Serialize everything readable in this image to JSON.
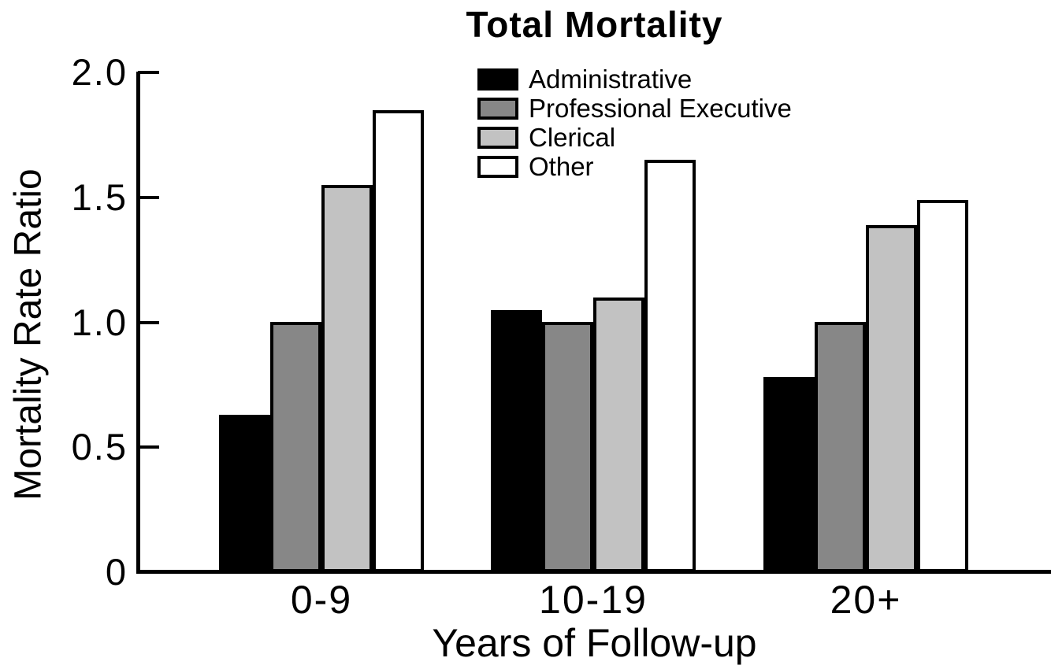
{
  "title": "Total Mortality",
  "chart_data": {
    "type": "bar",
    "title": "Total Mortality",
    "xlabel": "Years of Follow-up",
    "ylabel": "Mortality Rate Ratio",
    "categories": [
      "0-9",
      "10-19",
      "20+"
    ],
    "series": [
      {
        "name": "Administrative",
        "color": "#000000",
        "values": [
          0.63,
          1.05,
          0.78
        ]
      },
      {
        "name": "Professional Executive",
        "color": "#878787",
        "values": [
          1.0,
          1.0,
          1.0
        ]
      },
      {
        "name": "Clerical",
        "color": "#c2c2c2",
        "values": [
          1.55,
          1.1,
          1.39
        ]
      },
      {
        "name": "Other",
        "color": "#ffffff",
        "values": [
          1.85,
          1.65,
          1.49
        ]
      }
    ],
    "ylim": [
      0,
      2.0
    ],
    "yticks": [
      {
        "label": "0",
        "value": 0.0
      },
      {
        "label": "0.5",
        "value": 0.5
      },
      {
        "label": "1.0",
        "value": 1.0
      },
      {
        "label": "1.5",
        "value": 1.5
      },
      {
        "label": "2.0",
        "value": 2.0
      }
    ],
    "grid": false,
    "legend_position": "top-center"
  }
}
